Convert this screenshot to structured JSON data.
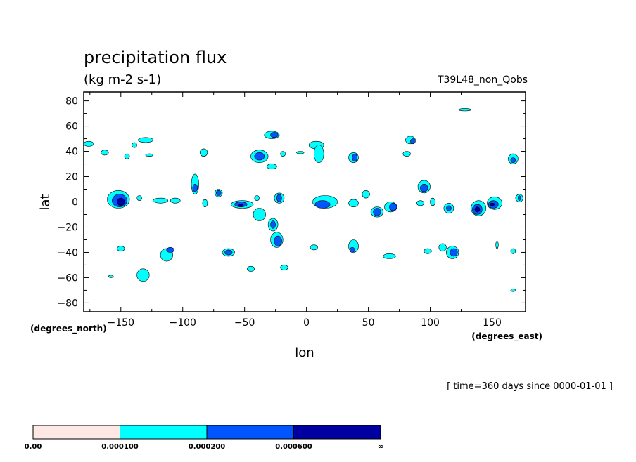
{
  "chart_data": {
    "type": "contour-map",
    "title": "precipitation flux",
    "units": "(kg m-2 s-1)",
    "run_label": "T39L48_non_Qobs",
    "time_label": "[ time=360 days since 0000-01-01 ]",
    "xlabel": "lon",
    "ylabel": "lat",
    "x_units_label": "(degrees_east)",
    "y_units_label": "(degrees_north)",
    "xlim": [
      -180,
      177
    ],
    "ylim": [
      -87,
      87
    ],
    "xticks": [
      -150,
      -100,
      -50,
      0,
      50,
      100,
      150
    ],
    "xtick_labels": [
      "−150",
      "−100",
      "−50",
      "0",
      "50",
      "100",
      "150"
    ],
    "yticks": [
      80,
      60,
      40,
      20,
      0,
      -20,
      -40,
      -60,
      -80
    ],
    "ytick_labels": [
      "80",
      "60",
      "40",
      "20",
      "0",
      "−20",
      "−40",
      "−60",
      "−80"
    ],
    "levels": [
      0.0,
      0.0001,
      0.0002,
      0.0006
    ],
    "colorbar": {
      "labels": [
        "0.00",
        "0.000100",
        "0.000200",
        "0.000600",
        "∞"
      ],
      "colors": [
        "#fde8e4",
        "#00ffff",
        "#0055ff",
        "#0000a0"
      ]
    },
    "cells": [
      {
        "lon": -176,
        "lat": 46,
        "rx": 4,
        "ry": 2,
        "level": 1
      },
      {
        "lon": -163,
        "lat": 39,
        "rx": 3,
        "ry": 2,
        "level": 1
      },
      {
        "lon": -152,
        "lat": 2,
        "rx": 9,
        "ry": 7,
        "level": 1
      },
      {
        "lon": -151,
        "lat": 1,
        "rx": 6,
        "ry": 5,
        "level": 2
      },
      {
        "lon": -150,
        "lat": 0,
        "rx": 3,
        "ry": 3,
        "level": 3
      },
      {
        "lon": -130,
        "lat": 49,
        "rx": 6,
        "ry": 2,
        "level": 1
      },
      {
        "lon": -139,
        "lat": 45,
        "rx": 2,
        "ry": 2,
        "level": 1
      },
      {
        "lon": -145,
        "lat": 36,
        "rx": 2,
        "ry": 2,
        "level": 1
      },
      {
        "lon": -127,
        "lat": 37,
        "rx": 3,
        "ry": 1,
        "level": 1
      },
      {
        "lon": -135,
        "lat": 3,
        "rx": 2,
        "ry": 2,
        "level": 1
      },
      {
        "lon": -118,
        "lat": 1,
        "rx": 6,
        "ry": 2,
        "level": 1
      },
      {
        "lon": -106,
        "lat": 1,
        "rx": 4,
        "ry": 2,
        "level": 1
      },
      {
        "lon": -150,
        "lat": -37,
        "rx": 3,
        "ry": 2,
        "level": 1
      },
      {
        "lon": -113,
        "lat": -42,
        "rx": 5,
        "ry": 5,
        "level": 1
      },
      {
        "lon": -110,
        "lat": -38,
        "rx": 3,
        "ry": 2,
        "level": 2
      },
      {
        "lon": -132,
        "lat": -58,
        "rx": 5,
        "ry": 5,
        "level": 1
      },
      {
        "lon": -158,
        "lat": -59,
        "rx": 2,
        "ry": 1,
        "level": 1
      },
      {
        "lon": -90,
        "lat": 14,
        "rx": 3,
        "ry": 8,
        "level": 1
      },
      {
        "lon": -90,
        "lat": 11,
        "rx": 2,
        "ry": 3,
        "level": 2
      },
      {
        "lon": -82,
        "lat": -1,
        "rx": 2,
        "ry": 3,
        "level": 1
      },
      {
        "lon": -71,
        "lat": 7,
        "rx": 3,
        "ry": 3,
        "level": 1
      },
      {
        "lon": -71,
        "lat": 7,
        "rx": 2,
        "ry": 2,
        "level": 2
      },
      {
        "lon": -83,
        "lat": 39,
        "rx": 3,
        "ry": 3,
        "level": 1
      },
      {
        "lon": -63,
        "lat": -40,
        "rx": 5,
        "ry": 3,
        "level": 1
      },
      {
        "lon": -63,
        "lat": -40,
        "rx": 3,
        "ry": 2,
        "level": 2
      },
      {
        "lon": -52,
        "lat": -2,
        "rx": 9,
        "ry": 3,
        "level": 1
      },
      {
        "lon": -53,
        "lat": -2,
        "rx": 5,
        "ry": 2,
        "level": 2
      },
      {
        "lon": -53,
        "lat": -3,
        "rx": 2,
        "ry": 1,
        "level": 3
      },
      {
        "lon": -38,
        "lat": -10,
        "rx": 5,
        "ry": 5,
        "level": 1
      },
      {
        "lon": -27,
        "lat": -18,
        "rx": 4,
        "ry": 5,
        "level": 1
      },
      {
        "lon": -27,
        "lat": -18,
        "rx": 2,
        "ry": 3,
        "level": 2
      },
      {
        "lon": -24,
        "lat": -30,
        "rx": 5,
        "ry": 6,
        "level": 1
      },
      {
        "lon": -23,
        "lat": -31,
        "rx": 3,
        "ry": 4,
        "level": 2
      },
      {
        "lon": -22,
        "lat": 3,
        "rx": 4,
        "ry": 4,
        "level": 1
      },
      {
        "lon": -22,
        "lat": 3,
        "rx": 2,
        "ry": 3,
        "level": 2
      },
      {
        "lon": -40,
        "lat": 3,
        "rx": 2,
        "ry": 2,
        "level": 1
      },
      {
        "lon": -38,
        "lat": 36,
        "rx": 7,
        "ry": 5,
        "level": 1
      },
      {
        "lon": -38,
        "lat": 36,
        "rx": 4,
        "ry": 3,
        "level": 2
      },
      {
        "lon": -28,
        "lat": 28,
        "rx": 4,
        "ry": 2,
        "level": 1
      },
      {
        "lon": -28,
        "lat": 53,
        "rx": 6,
        "ry": 3,
        "level": 1
      },
      {
        "lon": -26,
        "lat": 53,
        "rx": 3,
        "ry": 2,
        "level": 2
      },
      {
        "lon": -19,
        "lat": 38,
        "rx": 2,
        "ry": 2,
        "level": 1
      },
      {
        "lon": -45,
        "lat": -53,
        "rx": 3,
        "ry": 2,
        "level": 1
      },
      {
        "lon": -18,
        "lat": -52,
        "rx": 3,
        "ry": 2,
        "level": 1
      },
      {
        "lon": 8,
        "lat": 45,
        "rx": 6,
        "ry": 3,
        "level": 1
      },
      {
        "lon": 10,
        "lat": 38,
        "rx": 4,
        "ry": 7,
        "level": 1
      },
      {
        "lon": -5,
        "lat": 39,
        "rx": 3,
        "ry": 1,
        "level": 1
      },
      {
        "lon": 6,
        "lat": -36,
        "rx": 3,
        "ry": 2,
        "level": 1
      },
      {
        "lon": 15,
        "lat": 0,
        "rx": 10,
        "ry": 5,
        "level": 1
      },
      {
        "lon": 13,
        "lat": -2,
        "rx": 6,
        "ry": 3,
        "level": 2
      },
      {
        "lon": 38,
        "lat": 35,
        "rx": 4,
        "ry": 4,
        "level": 1
      },
      {
        "lon": 39,
        "lat": 35,
        "rx": 2,
        "ry": 3,
        "level": 2
      },
      {
        "lon": 38,
        "lat": -35,
        "rx": 4,
        "ry": 5,
        "level": 1
      },
      {
        "lon": 37,
        "lat": -38,
        "rx": 2,
        "ry": 2,
        "level": 2
      },
      {
        "lon": 38,
        "lat": -1,
        "rx": 4,
        "ry": 3,
        "level": 1
      },
      {
        "lon": 48,
        "lat": 6,
        "rx": 3,
        "ry": 3,
        "level": 1
      },
      {
        "lon": 57,
        "lat": -8,
        "rx": 5,
        "ry": 4,
        "level": 1
      },
      {
        "lon": 57,
        "lat": -8,
        "rx": 3,
        "ry": 3,
        "level": 2
      },
      {
        "lon": 68,
        "lat": -4,
        "rx": 5,
        "ry": 4,
        "level": 1
      },
      {
        "lon": 70,
        "lat": -4,
        "rx": 3,
        "ry": 3,
        "level": 2
      },
      {
        "lon": 67,
        "lat": -43,
        "rx": 5,
        "ry": 2,
        "level": 1
      },
      {
        "lon": 84,
        "lat": 49,
        "rx": 4,
        "ry": 3,
        "level": 1
      },
      {
        "lon": 86,
        "lat": 48,
        "rx": 2,
        "ry": 2,
        "level": 2
      },
      {
        "lon": 81,
        "lat": 38,
        "rx": 3,
        "ry": 2,
        "level": 1
      },
      {
        "lon": 95,
        "lat": 12,
        "rx": 5,
        "ry": 5,
        "level": 1
      },
      {
        "lon": 95,
        "lat": 11,
        "rx": 3,
        "ry": 3,
        "level": 2
      },
      {
        "lon": 92,
        "lat": -1,
        "rx": 3,
        "ry": 2,
        "level": 1
      },
      {
        "lon": 102,
        "lat": 0,
        "rx": 2,
        "ry": 3,
        "level": 1
      },
      {
        "lon": 98,
        "lat": -39,
        "rx": 3,
        "ry": 2,
        "level": 1
      },
      {
        "lon": 110,
        "lat": -36,
        "rx": 3,
        "ry": 3,
        "level": 1
      },
      {
        "lon": 118,
        "lat": -40,
        "rx": 5,
        "ry": 5,
        "level": 1
      },
      {
        "lon": 119,
        "lat": -40,
        "rx": 3,
        "ry": 3,
        "level": 2
      },
      {
        "lon": 115,
        "lat": -5,
        "rx": 4,
        "ry": 4,
        "level": 1
      },
      {
        "lon": 115,
        "lat": -5,
        "rx": 2,
        "ry": 2,
        "level": 2
      },
      {
        "lon": 128,
        "lat": 73,
        "rx": 5,
        "ry": 1,
        "level": 1
      },
      {
        "lon": 139,
        "lat": -5,
        "rx": 6,
        "ry": 6,
        "level": 1
      },
      {
        "lon": 138,
        "lat": -6,
        "rx": 4,
        "ry": 4,
        "level": 2
      },
      {
        "lon": 138,
        "lat": -6,
        "rx": 2,
        "ry": 2,
        "level": 3
      },
      {
        "lon": 152,
        "lat": -1,
        "rx": 6,
        "ry": 5,
        "level": 1
      },
      {
        "lon": 151,
        "lat": -2,
        "rx": 4,
        "ry": 3,
        "level": 2
      },
      {
        "lon": 150,
        "lat": -2,
        "rx": 2,
        "ry": 1,
        "level": 3
      },
      {
        "lon": 167,
        "lat": 34,
        "rx": 4,
        "ry": 4,
        "level": 1
      },
      {
        "lon": 167,
        "lat": 33,
        "rx": 2,
        "ry": 2,
        "level": 2
      },
      {
        "lon": 172,
        "lat": 3,
        "rx": 3,
        "ry": 3,
        "level": 1
      },
      {
        "lon": 172,
        "lat": 3,
        "rx": 1,
        "ry": 2,
        "level": 2
      },
      {
        "lon": 154,
        "lat": -34,
        "rx": 1,
        "ry": 3,
        "level": 1
      },
      {
        "lon": 167,
        "lat": -39,
        "rx": 2,
        "ry": 2,
        "level": 1
      },
      {
        "lon": 167,
        "lat": -70,
        "rx": 2,
        "ry": 1,
        "level": 1
      }
    ]
  }
}
